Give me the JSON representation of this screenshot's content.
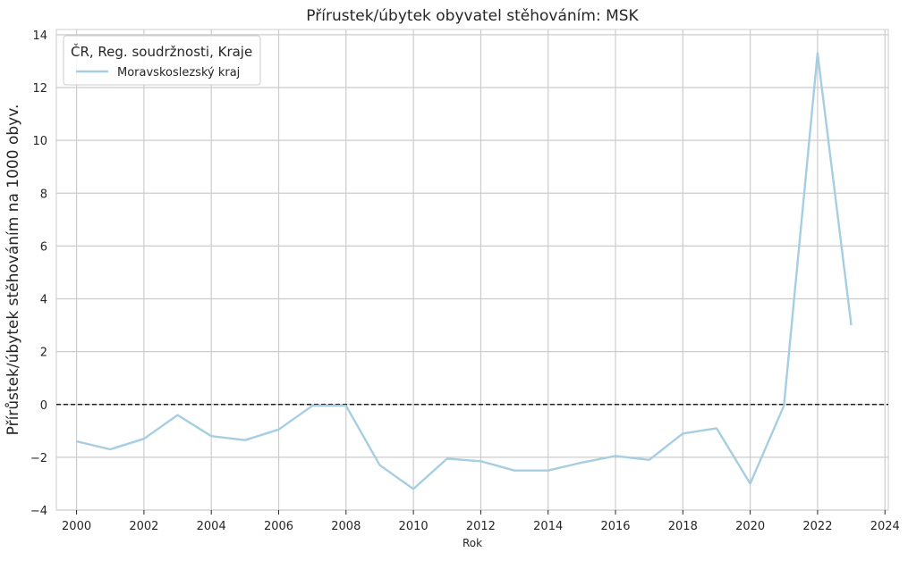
{
  "chart_data": {
    "type": "line",
    "title": "Přírustek/úbytek obyvatel stěhováním: MSK",
    "xlabel": "Rok",
    "ylabel": "Přírůstek/úbytek stěhováním na 1000 obyv.",
    "xlim": [
      1999.4,
      2024.1
    ],
    "ylim": [
      -4,
      14.2
    ],
    "xticks": [
      2000,
      2002,
      2004,
      2006,
      2008,
      2010,
      2012,
      2014,
      2016,
      2018,
      2020,
      2022,
      2024
    ],
    "yticks": [
      -4,
      -2,
      0,
      2,
      4,
      6,
      8,
      10,
      12,
      14
    ],
    "grid": true,
    "legend": {
      "title": "ČR, Reg. soudržnosti, Kraje",
      "placement": "top-left"
    },
    "reference_line": {
      "y": 0,
      "style": "dashed",
      "color": "#222222"
    },
    "series": [
      {
        "name": "Moravskoslezský kraj",
        "color": "#a6cee3",
        "x": [
          2000,
          2001,
          2002,
          2003,
          2004,
          2005,
          2006,
          2007,
          2008,
          2009,
          2010,
          2011,
          2012,
          2013,
          2014,
          2015,
          2016,
          2017,
          2018,
          2019,
          2020,
          2021,
          2022,
          2023
        ],
        "y": [
          -1.4,
          -1.7,
          -1.3,
          -0.4,
          -1.2,
          -1.35,
          -0.95,
          -0.05,
          -0.05,
          -2.3,
          -3.2,
          -2.05,
          -2.15,
          -2.5,
          -2.5,
          -2.2,
          -1.95,
          -2.1,
          -1.1,
          -0.9,
          -3.0,
          -0.05,
          13.3,
          3.0
        ]
      }
    ]
  }
}
